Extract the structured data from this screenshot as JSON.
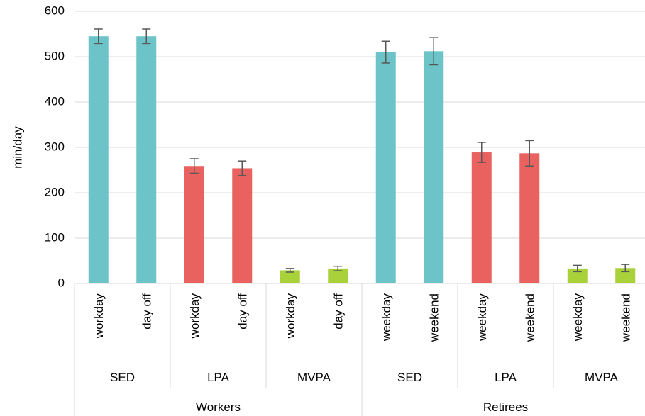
{
  "chart_data": {
    "type": "bar",
    "ylabel": "min/day",
    "ylim": [
      0,
      600
    ],
    "yticks": [
      0,
      100,
      200,
      300,
      400,
      500,
      600
    ],
    "grid": true,
    "groups": [
      {
        "label": "Workers",
        "subgroups": [
          {
            "label": "SED",
            "color": "#6cc4c8",
            "bars": [
              {
                "label": "workday",
                "value": 545,
                "err": 16
              },
              {
                "label": "day off",
                "value": 545,
                "err": 16
              }
            ]
          },
          {
            "label": "LPA",
            "color": "#e9625f",
            "bars": [
              {
                "label": "workday",
                "value": 259,
                "err": 16
              },
              {
                "label": "day off",
                "value": 254,
                "err": 16
              }
            ]
          },
          {
            "label": "MVPA",
            "color": "#a9d13a",
            "bars": [
              {
                "label": "workday",
                "value": 29,
                "err": 4
              },
              {
                "label": "day off",
                "value": 33,
                "err": 5
              }
            ]
          }
        ]
      },
      {
        "label": "Retirees",
        "subgroups": [
          {
            "label": "SED",
            "color": "#6cc4c8",
            "bars": [
              {
                "label": "weekday",
                "value": 510,
                "err": 24
              },
              {
                "label": "weekend",
                "value": 512,
                "err": 30
              }
            ]
          },
          {
            "label": "LPA",
            "color": "#e9625f",
            "bars": [
              {
                "label": "weekday",
                "value": 289,
                "err": 22
              },
              {
                "label": "weekend",
                "value": 287,
                "err": 28
              }
            ]
          },
          {
            "label": "MVPA",
            "color": "#a9d13a",
            "bars": [
              {
                "label": "weekday",
                "value": 33,
                "err": 7
              },
              {
                "label": "weekend",
                "value": 34,
                "err": 8
              }
            ]
          }
        ]
      }
    ]
  }
}
